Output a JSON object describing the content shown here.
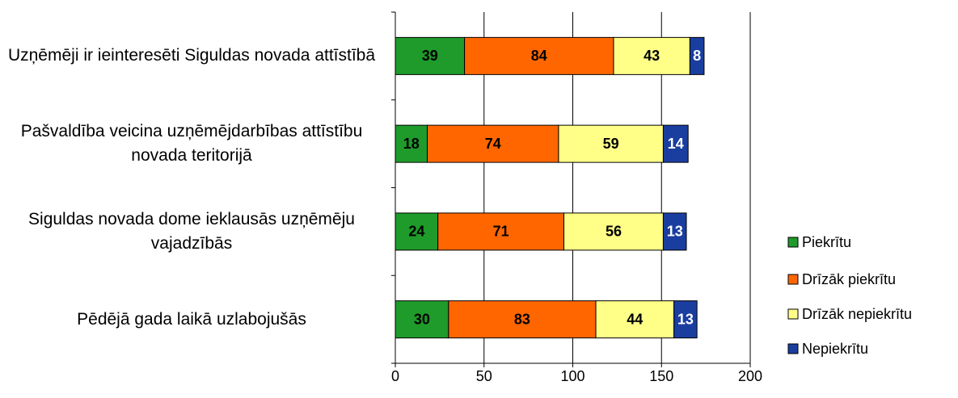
{
  "chart_data": {
    "type": "stacked_bar_horizontal",
    "categories": [
      "Uzņēmēji ir ieinteresēti Siguldas novada attīstībā",
      "Pašvaldība veicina uzņēmējdarbības attīstību novada teritorijā",
      "Siguldas novada dome ieklausās uzņēmēju vajadzībās",
      "Pēdējā gada laikā uzlabojušās"
    ],
    "series": [
      {
        "name": "Piekrītu",
        "color": "#1e9b2a",
        "label_color": "#000000",
        "values": [
          39,
          18,
          24,
          30
        ]
      },
      {
        "name": "Drīzāk piekrītu",
        "color": "#ff6600",
        "label_color": "#000000",
        "values": [
          84,
          74,
          71,
          83
        ]
      },
      {
        "name": "Drīzāk nepiekrītu",
        "color": "#ffff88",
        "label_color": "#000000",
        "values": [
          43,
          59,
          56,
          44
        ]
      },
      {
        "name": "Nepiekrītu",
        "color": "#1a3ea0",
        "label_color": "#ffffff",
        "values": [
          8,
          14,
          13,
          13
        ]
      }
    ],
    "xlim": [
      0,
      200
    ],
    "xticks": [
      0,
      50,
      100,
      150,
      200
    ],
    "grid": true,
    "legend": "right"
  }
}
